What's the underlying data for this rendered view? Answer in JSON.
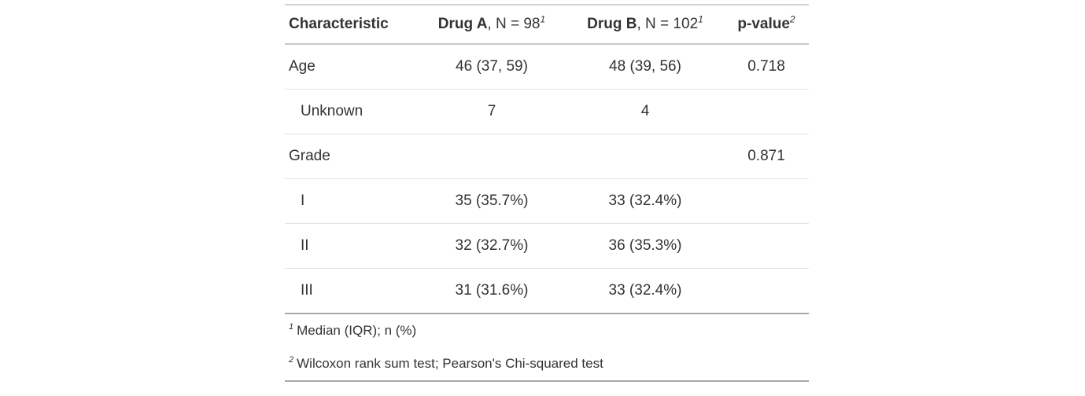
{
  "header": {
    "characteristic": "Characteristic",
    "drug_a": {
      "name": "Drug A",
      "n": ", N = 98",
      "footnote_mark": "1"
    },
    "drug_b": {
      "name": "Drug B",
      "n": ", N = 102",
      "footnote_mark": "1"
    },
    "p_value": {
      "name": "p-value",
      "footnote_mark": "2"
    }
  },
  "chart_data": {
    "type": "table",
    "title": "",
    "columns": [
      "Characteristic",
      "Drug A, N = 98",
      "Drug B, N = 102",
      "p-value"
    ],
    "column_footnote_marks": [
      "",
      "1",
      "1",
      "2"
    ],
    "column_align": [
      "left",
      "center",
      "center",
      "center"
    ],
    "rows": [
      [
        "Age",
        "46 (37, 59)",
        "48 (39, 56)",
        "0.718"
      ],
      [
        "Unknown",
        "7",
        "4",
        ""
      ],
      [
        "Grade",
        "",
        "",
        "0.871"
      ],
      [
        "I",
        "35 (35.7%)",
        "33 (32.4%)",
        ""
      ],
      [
        "II",
        "32 (32.7%)",
        "36 (35.3%)",
        ""
      ],
      [
        "III",
        "31 (31.6%)",
        "33 (32.4%)",
        ""
      ]
    ],
    "row_indent": [
      false,
      true,
      false,
      true,
      true,
      true
    ],
    "footnotes": [
      {
        "mark": "1",
        "text": "Median (IQR); n (%)"
      },
      {
        "mark": "2",
        "text": "Wilcoxon rank sum test; Pearson's Chi-squared test"
      }
    ]
  },
  "colors": {
    "text": "#333333",
    "background": "#ffffff",
    "border_light": "#e3e3e3",
    "border_mid": "#d3d3d3",
    "border_dark": "#a8a8a8"
  }
}
